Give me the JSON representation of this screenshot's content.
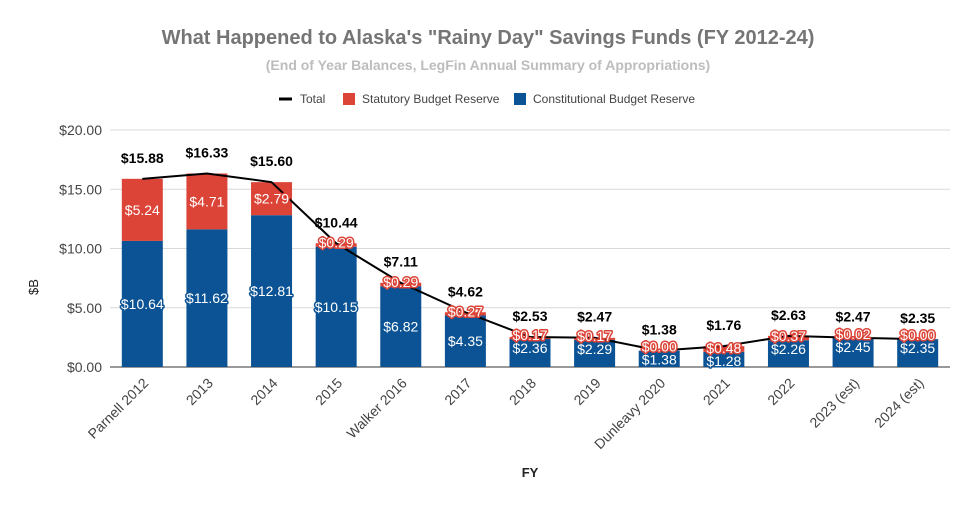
{
  "chart_data": {
    "type": "bar",
    "title": "What Happened to Alaska's \"Rainy Day\" Savings Funds (FY 2012-24)",
    "subtitle": "(End of Year Balances, LegFin Annual Summary of Appropriations)",
    "xlabel": "FY",
    "ylabel": "$B",
    "ylim": [
      0,
      20
    ],
    "yticks": [
      "$0.00",
      "$5.00",
      "$10.00",
      "$15.00",
      "$20.00"
    ],
    "ytick_values": [
      0,
      5,
      10,
      15,
      20
    ],
    "grid": true,
    "legend_position": "top",
    "stacked": true,
    "categories": [
      "Parnell 2012",
      "2013",
      "2014",
      "2015",
      "Walker 2016",
      "2017",
      "2018",
      "2019",
      "Dunleavy 2020",
      "2021",
      "2022",
      "2023 (est)",
      "2024 (est)"
    ],
    "series": [
      {
        "name": "Total",
        "type": "line",
        "color": "#000000",
        "values": [
          15.88,
          16.33,
          15.6,
          10.44,
          7.11,
          4.62,
          2.53,
          2.47,
          1.38,
          1.76,
          2.63,
          2.47,
          2.35
        ],
        "labels": [
          "$15.88",
          "$16.33",
          "$15.60",
          "$10.44",
          "$7.11",
          "$4.62",
          "$2.53",
          "$2.47",
          "$1.38",
          "$1.76",
          "$2.63",
          "$2.47",
          "$2.35"
        ]
      },
      {
        "name": "Statutory Budget Reserve",
        "type": "bar",
        "color": "#db4437",
        "values": [
          5.24,
          4.71,
          2.79,
          0.29,
          0.29,
          0.27,
          0.17,
          0.17,
          0.0,
          0.48,
          0.37,
          0.02,
          0.0
        ],
        "labels": [
          "$5.24",
          "$4.71",
          "$2.79",
          "$0.29",
          "$0.29",
          "$0.27",
          "$0.17",
          "$0.17",
          "$0.00",
          "$0.48",
          "$0.37",
          "$0.02",
          "$0.00"
        ]
      },
      {
        "name": "Constitutional Budget Reserve",
        "type": "bar",
        "color": "#0b5394",
        "values": [
          10.64,
          11.62,
          12.81,
          10.15,
          6.82,
          4.35,
          2.36,
          2.29,
          1.38,
          1.28,
          2.26,
          2.45,
          2.35
        ],
        "labels": [
          "$10.64",
          "$11.62",
          "$12.81",
          "$10.15",
          "$6.82",
          "$4.35",
          "$2.36",
          "$2.29",
          "$1.38",
          "$1.28",
          "$2.26",
          "$2.45",
          "$2.35"
        ]
      }
    ]
  }
}
